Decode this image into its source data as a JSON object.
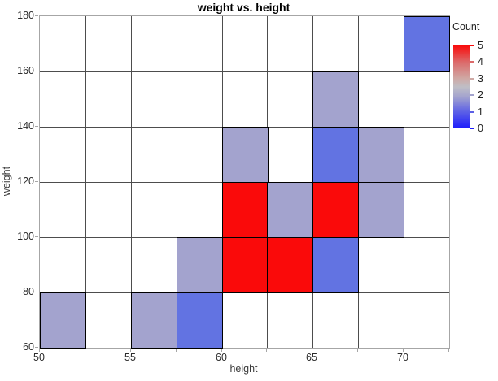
{
  "chart_data": {
    "type": "heatmap",
    "title": "weight vs. height",
    "xlabel": "height",
    "ylabel": "weight",
    "x_range": [
      50,
      72.5
    ],
    "y_range": [
      60,
      180
    ],
    "x_cell_size": 2.5,
    "y_cell_size": 20,
    "x_major_ticks": [
      50,
      55,
      60,
      65,
      70
    ],
    "y_major_ticks": [
      60,
      80,
      100,
      120,
      140,
      160,
      180
    ],
    "grid": true,
    "legend": {
      "title": "Count",
      "min": 0,
      "max": 5,
      "ticks": [
        5,
        4,
        3,
        2,
        1,
        0
      ],
      "position": "right"
    },
    "colors": {
      "count_1": "#6273e2",
      "count_2": "#a3a3ce",
      "count_5": "#fa0a0a",
      "empty": "#ffffff",
      "cell_border": "#000000",
      "gridline": "#4d4d4d",
      "frame": "#a6a6a6"
    },
    "colorbar_gradient": [
      {
        "pos": 0.0,
        "color": "#f90b0b"
      },
      {
        "pos": 0.2,
        "color": "#dc6a6a"
      },
      {
        "pos": 0.4,
        "color": "#cfa9a5"
      },
      {
        "pos": 0.5,
        "color": "#bfbec6"
      },
      {
        "pos": 0.62,
        "color": "#a3a3ce"
      },
      {
        "pos": 0.8,
        "color": "#5c60e6"
      },
      {
        "pos": 1.0,
        "color": "#1c1cfc"
      }
    ],
    "cells": [
      {
        "height_min": 50,
        "height_max": 52.5,
        "weight_min": 60,
        "weight_max": 80,
        "count": 2
      },
      {
        "height_min": 55,
        "height_max": 57.5,
        "weight_min": 60,
        "weight_max": 80,
        "count": 2
      },
      {
        "height_min": 57.5,
        "height_max": 60,
        "weight_min": 60,
        "weight_max": 80,
        "count": 1
      },
      {
        "height_min": 57.5,
        "height_max": 60,
        "weight_min": 80,
        "weight_max": 100,
        "count": 2
      },
      {
        "height_min": 60,
        "height_max": 62.5,
        "weight_min": 80,
        "weight_max": 100,
        "count": 5
      },
      {
        "height_min": 62.5,
        "height_max": 65,
        "weight_min": 80,
        "weight_max": 100,
        "count": 5
      },
      {
        "height_min": 65,
        "height_max": 67.5,
        "weight_min": 80,
        "weight_max": 100,
        "count": 1
      },
      {
        "height_min": 60,
        "height_max": 62.5,
        "weight_min": 100,
        "weight_max": 120,
        "count": 5
      },
      {
        "height_min": 62.5,
        "height_max": 65,
        "weight_min": 100,
        "weight_max": 120,
        "count": 2
      },
      {
        "height_min": 65,
        "height_max": 67.5,
        "weight_min": 100,
        "weight_max": 120,
        "count": 5
      },
      {
        "height_min": 67.5,
        "height_max": 70,
        "weight_min": 100,
        "weight_max": 120,
        "count": 2
      },
      {
        "height_min": 60,
        "height_max": 62.5,
        "weight_min": 120,
        "weight_max": 140,
        "count": 2
      },
      {
        "height_min": 65,
        "height_max": 67.5,
        "weight_min": 120,
        "weight_max": 140,
        "count": 1
      },
      {
        "height_min": 67.5,
        "height_max": 70,
        "weight_min": 120,
        "weight_max": 140,
        "count": 2
      },
      {
        "height_min": 65,
        "height_max": 67.5,
        "weight_min": 140,
        "weight_max": 160,
        "count": 2
      },
      {
        "height_min": 70,
        "height_max": 72.5,
        "weight_min": 160,
        "weight_max": 180,
        "count": 1
      }
    ]
  }
}
